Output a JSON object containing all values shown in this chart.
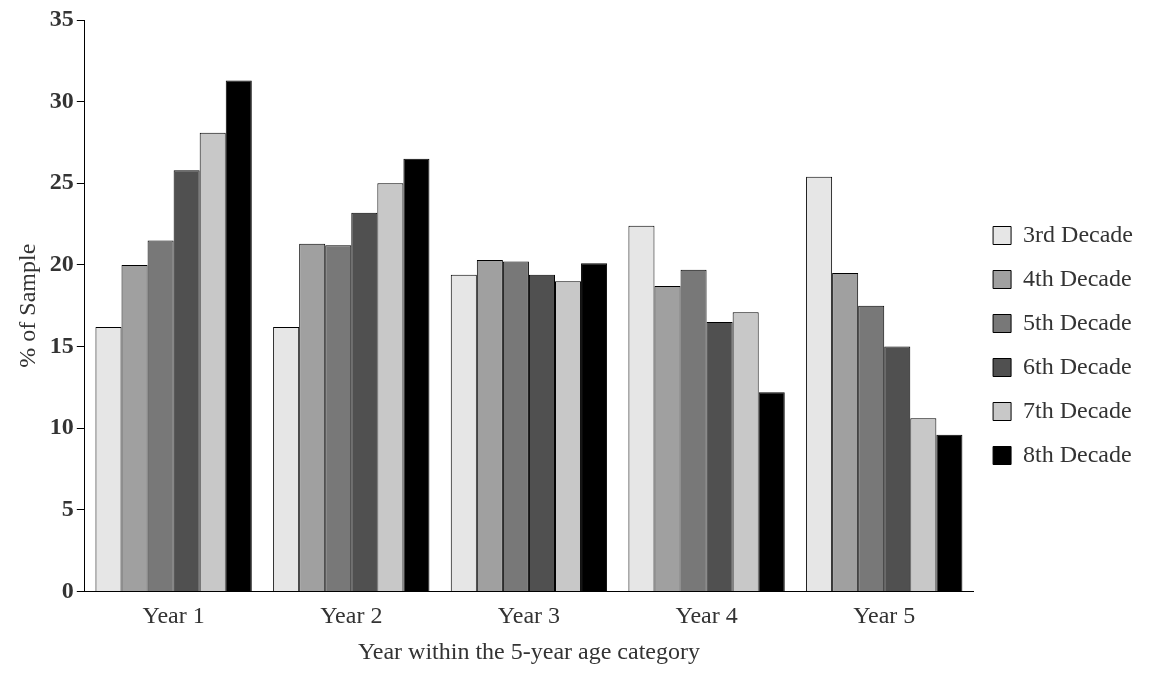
{
  "chart_data": {
    "type": "bar",
    "xlabel": "Year within the 5-year age category",
    "ylabel": "% of Sample",
    "categories": [
      "Year 1",
      "Year 2",
      "Year 3",
      "Year 4",
      "Year 5"
    ],
    "series": [
      {
        "name": "3rd Decade",
        "color": "#e6e6e6",
        "values": [
          16.2,
          16.2,
          19.4,
          22.4,
          25.4
        ]
      },
      {
        "name": "4th Decade",
        "color": "#a0a0a0",
        "values": [
          20.0,
          21.3,
          20.3,
          18.7,
          19.5
        ]
      },
      {
        "name": "5th Decade",
        "color": "#787878",
        "values": [
          21.5,
          21.2,
          20.2,
          19.7,
          17.5
        ]
      },
      {
        "name": "6th Decade",
        "color": "#505050",
        "values": [
          25.8,
          23.2,
          19.4,
          16.5,
          15.0
        ]
      },
      {
        "name": "7th Decade",
        "color": "#c8c8c8",
        "values": [
          28.1,
          25.0,
          19.0,
          17.1,
          10.6
        ]
      },
      {
        "name": "8th Decade",
        "color": "#000000",
        "values": [
          31.3,
          26.5,
          20.1,
          12.2,
          9.6
        ]
      }
    ],
    "ylim": [
      0,
      35
    ],
    "yticks": [
      0,
      5,
      10,
      15,
      20,
      25,
      30,
      35
    ],
    "grid": false,
    "legend": "right"
  }
}
